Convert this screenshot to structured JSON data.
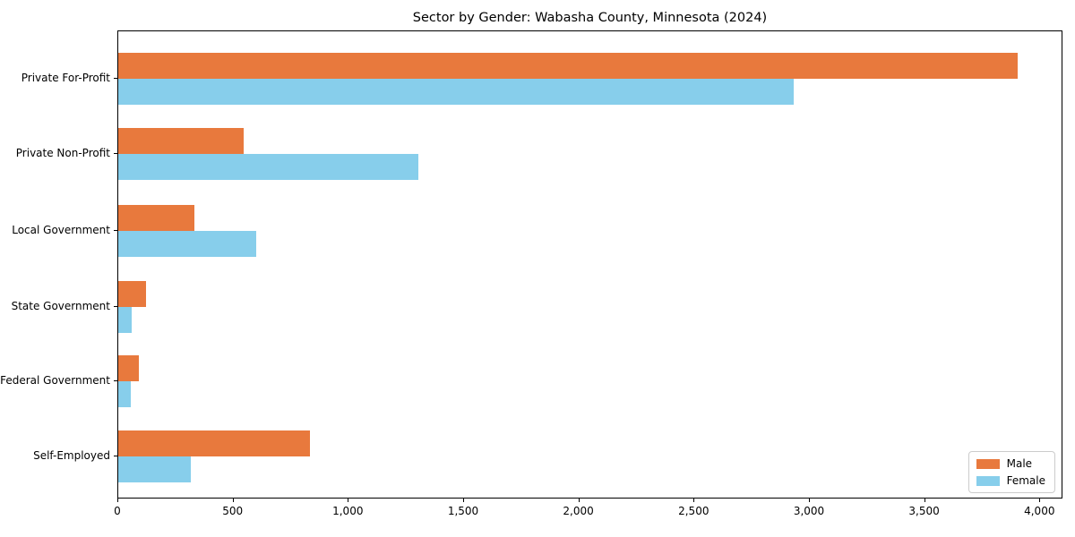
{
  "chart_data": {
    "type": "bar",
    "orientation": "horizontal",
    "title": "Sector by Gender: Wabasha County, Minnesota (2024)",
    "categories": [
      "Private For-Profit",
      "Private Non-Profit",
      "Local Government",
      "State Government",
      "Federal Government",
      "Self-Employed"
    ],
    "series": [
      {
        "name": "Male",
        "color": "#e8793d",
        "values": [
          3900,
          545,
          330,
          120,
          90,
          830
        ]
      },
      {
        "name": "Female",
        "color": "#87ceeb",
        "values": [
          2930,
          1300,
          600,
          60,
          55,
          315
        ]
      }
    ],
    "xlabel": "",
    "ylabel": "",
    "xlim": [
      0,
      4100
    ],
    "xticks": [
      0,
      500,
      1000,
      1500,
      2000,
      2500,
      3000,
      3500,
      4000
    ],
    "xtick_labels": [
      "0",
      "500",
      "1,000",
      "1,500",
      "2,000",
      "2,500",
      "3,000",
      "3,500",
      "4,000"
    ],
    "grid": false,
    "legend_position": "lower right"
  }
}
